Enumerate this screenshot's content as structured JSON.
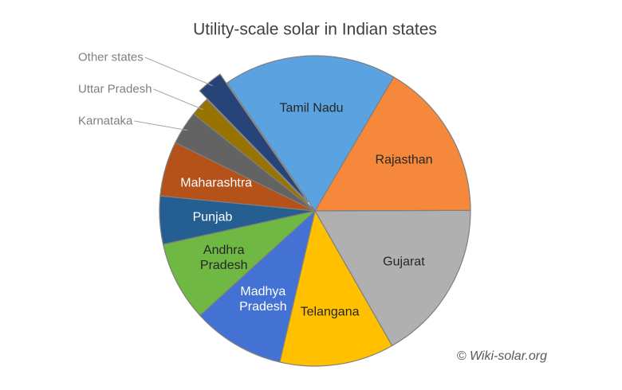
{
  "chart_data": {
    "type": "pie",
    "title": "Utility-scale solar in Indian states",
    "categories": [
      "Tamil Nadu",
      "Rajasthan",
      "Gujarat",
      "Telangana",
      "Madhya Pradesh",
      "Andhra Pradesh",
      "Punjab",
      "Maharashtra",
      "Karnataka",
      "Uttar Pradesh",
      "Other states"
    ],
    "values": [
      18.0,
      16.5,
      16.8,
      11.9,
      9.6,
      8.3,
      5.0,
      5.7,
      3.5,
      2.0,
      2.7
    ],
    "colors": [
      "#5ba3e0",
      "#f5883a",
      "#b0b0b0",
      "#ffc000",
      "#4472d4",
      "#70b844",
      "#255e91",
      "#b5521a",
      "#636363",
      "#997300",
      "#264478"
    ],
    "annotation": "© Wiki-solar.org"
  }
}
